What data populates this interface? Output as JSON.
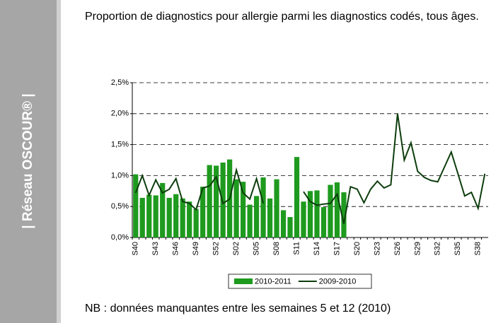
{
  "sidebar_label": "| Réseau OSCOUR® |",
  "title": "Proportion de diagnostics pour allergie parmi les diagnostics codés, tous âges.",
  "note": "NB : données manquantes entre les semaines 5 et 12 (2010)",
  "chart_data": {
    "type": "bar",
    "categories": [
      "S40",
      null,
      null,
      "S43",
      null,
      null,
      "S46",
      null,
      null,
      "S49",
      null,
      null,
      "S52",
      null,
      null,
      "S02",
      null,
      null,
      "S05",
      null,
      null,
      "S08",
      null,
      null,
      "S11",
      null,
      null,
      "S14",
      null,
      null,
      "S17",
      null,
      null,
      "S20",
      null,
      null,
      "S23",
      null,
      null,
      "S26",
      null,
      null,
      "S29",
      null,
      null,
      "S32",
      null,
      null,
      "S35",
      null,
      null,
      "S38",
      null
    ],
    "series": [
      {
        "name": "2010-2011",
        "type": "bar",
        "color": "#1e9a1e",
        "values": [
          1.02,
          0.64,
          0.69,
          0.68,
          0.88,
          0.64,
          0.7,
          0.63,
          0.58,
          0.46,
          0.82,
          1.17,
          1.16,
          1.21,
          1.26,
          0.94,
          0.9,
          0.53,
          0.67,
          0.97,
          0.63,
          0.94,
          0.44,
          0.33,
          1.3,
          0.58,
          0.75,
          0.76,
          0.49,
          0.85,
          0.89,
          0.73,
          null,
          null,
          null,
          null,
          null,
          null,
          null,
          null,
          null,
          null,
          null,
          null,
          null,
          null,
          null,
          null,
          null,
          null,
          null,
          null,
          null
        ]
      },
      {
        "name": "2009-2010",
        "type": "line",
        "color": "#0d3d0d",
        "values": [
          0.72,
          1.0,
          0.68,
          0.93,
          0.72,
          0.78,
          0.95,
          0.58,
          0.55,
          0.45,
          0.8,
          0.83,
          0.98,
          0.55,
          0.62,
          1.09,
          0.72,
          0.62,
          0.95,
          0.55,
          null,
          null,
          null,
          null,
          null,
          0.74,
          0.58,
          0.52,
          0.54,
          0.55,
          0.7,
          0.22,
          0.82,
          0.78,
          0.56,
          0.78,
          0.91,
          0.8,
          0.85,
          2.0,
          1.25,
          1.53,
          1.07,
          0.97,
          0.92,
          0.9,
          1.14,
          1.38,
          1.03,
          0.67,
          0.73,
          0.47,
          1.03
        ]
      }
    ],
    "ylim": [
      0,
      2.5
    ],
    "yticks": [
      {
        "value": 0,
        "label": "0,0%"
      },
      {
        "value": 0.5,
        "label": "0,5%"
      },
      {
        "value": 1,
        "label": "1,0%"
      },
      {
        "value": 1.5,
        "label": "1,5%"
      },
      {
        "value": 2,
        "label": "2,0%"
      },
      {
        "value": 2.5,
        "label": "2,5%"
      }
    ],
    "grid": true,
    "legend": "bottom"
  }
}
